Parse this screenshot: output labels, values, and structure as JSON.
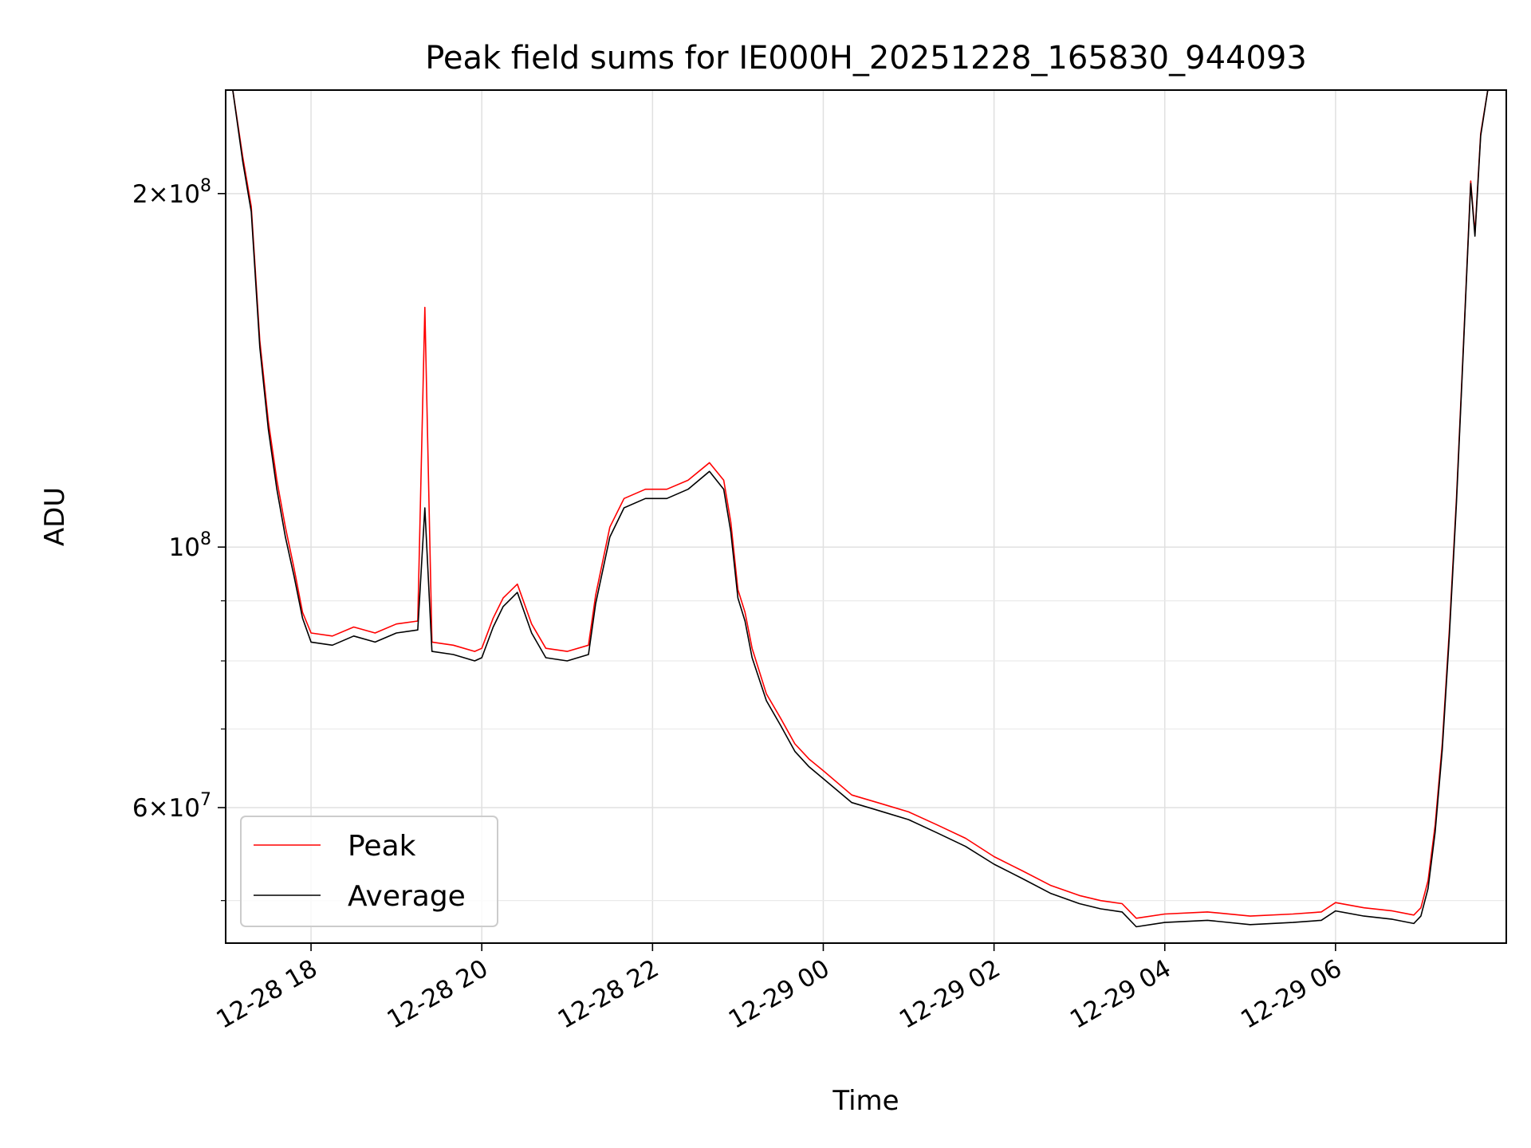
{
  "chart_data": {
    "type": "line",
    "title": "Peak field sums for IE000H_20251228_165830_944093",
    "xlabel": "Time",
    "ylabel": "ADU",
    "yscale": "log",
    "grid": true,
    "legend": {
      "position": "lower-left",
      "entries": [
        "Peak",
        "Average"
      ]
    },
    "xlim": [
      "2025-12-28 17:00",
      "2025-12-29 08:00"
    ],
    "ylim": [
      46000000,
      245000000
    ],
    "x_ticks": [
      {
        "x": "2025-12-28 18:00",
        "label": "12-28 18"
      },
      {
        "x": "2025-12-28 20:00",
        "label": "12-28 20"
      },
      {
        "x": "2025-12-28 22:00",
        "label": "12-28 22"
      },
      {
        "x": "2025-12-29 00:00",
        "label": "12-29 00"
      },
      {
        "x": "2025-12-29 02:00",
        "label": "12-29 02"
      },
      {
        "x": "2025-12-29 04:00",
        "label": "12-29 04"
      },
      {
        "x": "2025-12-29 06:00",
        "label": "12-29 06"
      }
    ],
    "y_major_ticks": [
      {
        "value": 60000000,
        "mantissa": "6",
        "exponent": "7"
      },
      {
        "value": 100000000,
        "mantissa": "",
        "exponent": "8"
      },
      {
        "value": 200000000,
        "mantissa": "2",
        "exponent": "8"
      }
    ],
    "y_minor_ticks": [
      50000000,
      70000000,
      80000000,
      90000000
    ],
    "series": [
      {
        "name": "Peak",
        "color": "#ff0000",
        "points": [
          [
            "2025-12-28 17:05",
            245000000
          ],
          [
            "2025-12-28 17:12",
            215000000
          ],
          [
            "2025-12-28 17:18",
            195000000
          ],
          [
            "2025-12-28 17:24",
            150000000
          ],
          [
            "2025-12-28 17:30",
            128000000
          ],
          [
            "2025-12-28 17:36",
            114000000
          ],
          [
            "2025-12-28 17:42",
            104000000
          ],
          [
            "2025-12-28 17:48",
            96000000
          ],
          [
            "2025-12-28 17:54",
            88000000
          ],
          [
            "2025-12-28 18:00",
            84500000
          ],
          [
            "2025-12-28 18:15",
            84000000
          ],
          [
            "2025-12-28 18:30",
            85500000
          ],
          [
            "2025-12-28 18:45",
            84500000
          ],
          [
            "2025-12-28 19:00",
            86000000
          ],
          [
            "2025-12-28 19:15",
            86500000
          ],
          [
            "2025-12-28 19:20",
            160000000
          ],
          [
            "2025-12-28 19:25",
            83000000
          ],
          [
            "2025-12-28 19:40",
            82500000
          ],
          [
            "2025-12-28 19:55",
            81500000
          ],
          [
            "2025-12-28 20:00",
            82000000
          ],
          [
            "2025-12-28 20:08",
            87000000
          ],
          [
            "2025-12-28 20:15",
            90500000
          ],
          [
            "2025-12-28 20:25",
            93000000
          ],
          [
            "2025-12-28 20:35",
            86000000
          ],
          [
            "2025-12-28 20:45",
            82000000
          ],
          [
            "2025-12-28 21:00",
            81500000
          ],
          [
            "2025-12-28 21:15",
            82500000
          ],
          [
            "2025-12-28 21:20",
            91000000
          ],
          [
            "2025-12-28 21:30",
            104000000
          ],
          [
            "2025-12-28 21:40",
            110000000
          ],
          [
            "2025-12-28 21:55",
            112000000
          ],
          [
            "2025-12-28 22:10",
            112000000
          ],
          [
            "2025-12-28 22:25",
            114000000
          ],
          [
            "2025-12-28 22:40",
            118000000
          ],
          [
            "2025-12-28 22:50",
            114000000
          ],
          [
            "2025-12-28 22:55",
            105000000
          ],
          [
            "2025-12-28 23:00",
            92000000
          ],
          [
            "2025-12-28 23:05",
            88000000
          ],
          [
            "2025-12-28 23:10",
            82000000
          ],
          [
            "2025-12-28 23:20",
            75000000
          ],
          [
            "2025-12-28 23:30",
            71500000
          ],
          [
            "2025-12-28 23:40",
            68000000
          ],
          [
            "2025-12-28 23:50",
            66000000
          ],
          [
            "2025-12-29 00:00",
            64500000
          ],
          [
            "2025-12-29 00:20",
            61500000
          ],
          [
            "2025-12-29 00:40",
            60500000
          ],
          [
            "2025-12-29 01:00",
            59500000
          ],
          [
            "2025-12-29 01:20",
            58000000
          ],
          [
            "2025-12-29 01:40",
            56500000
          ],
          [
            "2025-12-29 02:00",
            54500000
          ],
          [
            "2025-12-29 02:20",
            53000000
          ],
          [
            "2025-12-29 02:40",
            51500000
          ],
          [
            "2025-12-29 03:00",
            50500000
          ],
          [
            "2025-12-29 03:15",
            50000000
          ],
          [
            "2025-12-29 03:30",
            49700000
          ],
          [
            "2025-12-29 03:40",
            48300000
          ],
          [
            "2025-12-29 04:00",
            48700000
          ],
          [
            "2025-12-29 04:30",
            48900000
          ],
          [
            "2025-12-29 05:00",
            48500000
          ],
          [
            "2025-12-29 05:30",
            48700000
          ],
          [
            "2025-12-29 05:50",
            48900000
          ],
          [
            "2025-12-29 06:00",
            49800000
          ],
          [
            "2025-12-29 06:20",
            49300000
          ],
          [
            "2025-12-29 06:40",
            49000000
          ],
          [
            "2025-12-29 06:55",
            48600000
          ],
          [
            "2025-12-29 07:00",
            49300000
          ],
          [
            "2025-12-29 07:05",
            52000000
          ],
          [
            "2025-12-29 07:10",
            58000000
          ],
          [
            "2025-12-29 07:15",
            68000000
          ],
          [
            "2025-12-29 07:20",
            85000000
          ],
          [
            "2025-12-29 07:25",
            110000000
          ],
          [
            "2025-12-29 07:30",
            150000000
          ],
          [
            "2025-12-29 07:35",
            205000000
          ],
          [
            "2025-12-29 07:38",
            185000000
          ],
          [
            "2025-12-29 07:42",
            225000000
          ],
          [
            "2025-12-29 07:47",
            245000000
          ]
        ]
      },
      {
        "name": "Average",
        "color": "#000000",
        "points": [
          [
            "2025-12-28 17:05",
            245000000
          ],
          [
            "2025-12-28 17:12",
            213000000
          ],
          [
            "2025-12-28 17:18",
            193000000
          ],
          [
            "2025-12-28 17:24",
            148000000
          ],
          [
            "2025-12-28 17:30",
            126000000
          ],
          [
            "2025-12-28 17:36",
            112000000
          ],
          [
            "2025-12-28 17:42",
            102000000
          ],
          [
            "2025-12-28 17:48",
            94500000
          ],
          [
            "2025-12-28 17:54",
            87000000
          ],
          [
            "2025-12-28 18:00",
            83000000
          ],
          [
            "2025-12-28 18:15",
            82500000
          ],
          [
            "2025-12-28 18:30",
            84000000
          ],
          [
            "2025-12-28 18:45",
            83000000
          ],
          [
            "2025-12-28 19:00",
            84500000
          ],
          [
            "2025-12-28 19:15",
            85000000
          ],
          [
            "2025-12-28 19:20",
            108000000
          ],
          [
            "2025-12-28 19:25",
            81500000
          ],
          [
            "2025-12-28 19:40",
            81000000
          ],
          [
            "2025-12-28 19:55",
            80000000
          ],
          [
            "2025-12-28 20:00",
            80500000
          ],
          [
            "2025-12-28 20:08",
            85500000
          ],
          [
            "2025-12-28 20:15",
            89000000
          ],
          [
            "2025-12-28 20:25",
            91500000
          ],
          [
            "2025-12-28 20:35",
            84500000
          ],
          [
            "2025-12-28 20:45",
            80500000
          ],
          [
            "2025-12-28 21:00",
            80000000
          ],
          [
            "2025-12-28 21:15",
            81000000
          ],
          [
            "2025-12-28 21:20",
            89500000
          ],
          [
            "2025-12-28 21:30",
            102000000
          ],
          [
            "2025-12-28 21:40",
            108000000
          ],
          [
            "2025-12-28 21:55",
            110000000
          ],
          [
            "2025-12-28 22:10",
            110000000
          ],
          [
            "2025-12-28 22:25",
            112000000
          ],
          [
            "2025-12-28 22:40",
            116000000
          ],
          [
            "2025-12-28 22:50",
            112000000
          ],
          [
            "2025-12-28 22:55",
            103000000
          ],
          [
            "2025-12-28 23:00",
            90500000
          ],
          [
            "2025-12-28 23:05",
            86500000
          ],
          [
            "2025-12-28 23:10",
            80500000
          ],
          [
            "2025-12-28 23:20",
            74000000
          ],
          [
            "2025-12-28 23:30",
            70500000
          ],
          [
            "2025-12-28 23:40",
            67000000
          ],
          [
            "2025-12-28 23:50",
            65000000
          ],
          [
            "2025-12-29 00:00",
            63500000
          ],
          [
            "2025-12-29 00:20",
            60600000
          ],
          [
            "2025-12-29 00:40",
            59600000
          ],
          [
            "2025-12-29 01:00",
            58600000
          ],
          [
            "2025-12-29 01:20",
            57100000
          ],
          [
            "2025-12-29 01:40",
            55600000
          ],
          [
            "2025-12-29 02:00",
            53700000
          ],
          [
            "2025-12-29 02:20",
            52200000
          ],
          [
            "2025-12-29 02:40",
            50700000
          ],
          [
            "2025-12-29 03:00",
            49700000
          ],
          [
            "2025-12-29 03:15",
            49200000
          ],
          [
            "2025-12-29 03:30",
            48900000
          ],
          [
            "2025-12-29 03:40",
            47500000
          ],
          [
            "2025-12-29 04:00",
            47900000
          ],
          [
            "2025-12-29 04:30",
            48100000
          ],
          [
            "2025-12-29 05:00",
            47700000
          ],
          [
            "2025-12-29 05:30",
            47900000
          ],
          [
            "2025-12-29 05:50",
            48100000
          ],
          [
            "2025-12-29 06:00",
            49000000
          ],
          [
            "2025-12-29 06:20",
            48500000
          ],
          [
            "2025-12-29 06:40",
            48200000
          ],
          [
            "2025-12-29 06:55",
            47800000
          ],
          [
            "2025-12-29 07:00",
            48500000
          ],
          [
            "2025-12-29 07:05",
            51200000
          ],
          [
            "2025-12-29 07:10",
            57200000
          ],
          [
            "2025-12-29 07:15",
            67200000
          ],
          [
            "2025-12-29 07:20",
            84000000
          ],
          [
            "2025-12-29 07:25",
            109000000
          ],
          [
            "2025-12-29 07:30",
            149000000
          ],
          [
            "2025-12-29 07:35",
            204000000
          ],
          [
            "2025-12-29 07:38",
            184000000
          ],
          [
            "2025-12-29 07:42",
            224000000
          ],
          [
            "2025-12-29 07:47",
            245000000
          ]
        ]
      }
    ]
  }
}
